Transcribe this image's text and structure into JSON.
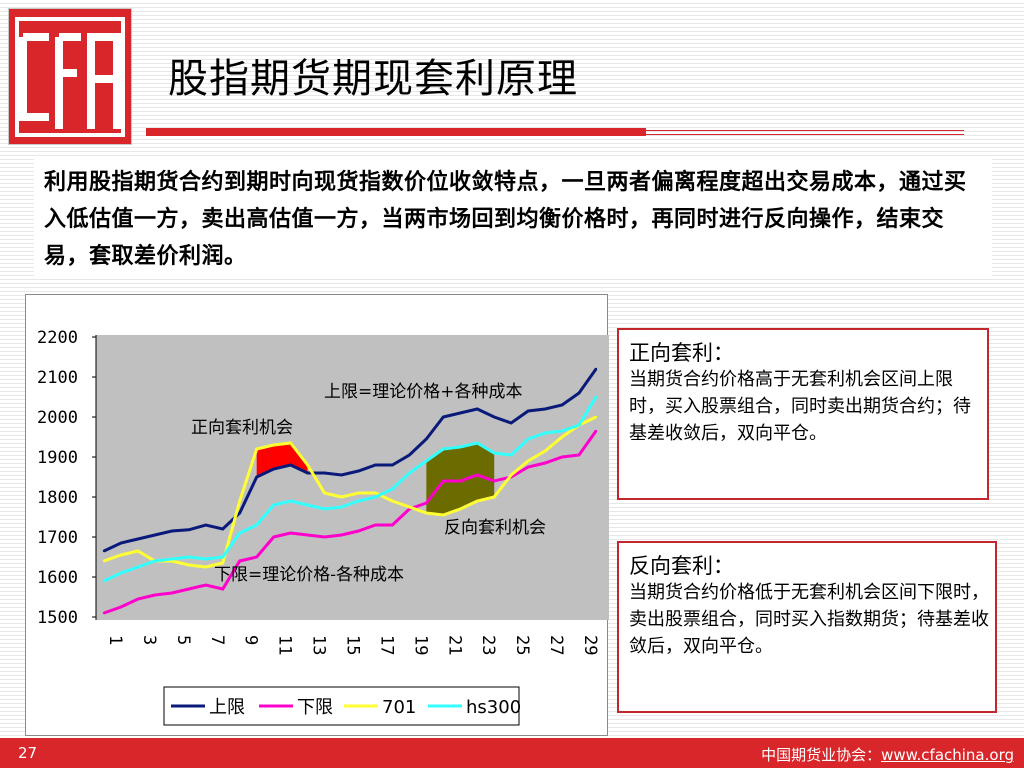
{
  "slide": {
    "title": "股指期货期现套利原理",
    "intro": "利用股指期货合约到期时向现货指数价位收敛特点，一旦两者偏离程度超出交易成本，通过买入低估值一方，卖出高估值一方，当两市场回到均衡价格时，再同时进行反向操作，结束交易，套取差价利润。",
    "page_number": "27",
    "footer_org": "中国期货业协会：",
    "footer_url": "www.cfachina.org"
  },
  "callouts": [
    {
      "title": "正向套利：",
      "body": "当期货合约价格高于无套利机会区间上限时，买入股票组合，同时卖出期货合约；待基差收敛后，双向平仓。"
    },
    {
      "title": "反向套利：",
      "body": "当期货合约价格低于无套利机会区间下限时，卖出股票组合，同时买入指数期货；待基差收敛后，双向平仓。"
    }
  ],
  "colors": {
    "brand_red": "#d8262a",
    "callout_border": "#c1272d",
    "plot_bg": "#c0c0c0"
  },
  "chart_data": {
    "type": "line",
    "x": [
      1,
      2,
      3,
      4,
      5,
      6,
      7,
      8,
      9,
      10,
      11,
      12,
      13,
      14,
      15,
      16,
      17,
      18,
      19,
      20,
      21,
      22,
      23,
      24,
      25,
      26,
      27,
      28,
      29,
      30
    ],
    "x_tick_labels": [
      "1",
      "3",
      "5",
      "7",
      "9",
      "11",
      "13",
      "15",
      "17",
      "19",
      "21",
      "23",
      "25",
      "27",
      "29"
    ],
    "ylim": [
      1500,
      2200
    ],
    "y_ticks": [
      1500,
      1600,
      1700,
      1800,
      1900,
      2000,
      2100,
      2200
    ],
    "series": [
      {
        "name": "上限",
        "color": "#0a1a7a",
        "values": [
          1665,
          1685,
          1695,
          1705,
          1715,
          1718,
          1730,
          1720,
          1760,
          1850,
          1870,
          1880,
          1860,
          1860,
          1855,
          1865,
          1880,
          1880,
          1905,
          1945,
          2000,
          2010,
          2020,
          2000,
          1985,
          2015,
          2020,
          2030,
          2060,
          2120
        ]
      },
      {
        "name": "下限",
        "color": "#ff00cc",
        "values": [
          1510,
          1525,
          1545,
          1555,
          1560,
          1570,
          1580,
          1570,
          1640,
          1650,
          1700,
          1710,
          1705,
          1700,
          1705,
          1715,
          1730,
          1730,
          1770,
          1785,
          1840,
          1840,
          1855,
          1840,
          1850,
          1875,
          1885,
          1900,
          1905,
          1965
        ]
      },
      {
        "name": "701",
        "color": "#ffff33",
        "values": [
          1640,
          1655,
          1665,
          1640,
          1640,
          1630,
          1625,
          1635,
          1790,
          1920,
          1930,
          1935,
          1880,
          1810,
          1800,
          1810,
          1810,
          1790,
          1775,
          1760,
          1755,
          1770,
          1790,
          1800,
          1855,
          1890,
          1915,
          1950,
          1980,
          2000
        ]
      },
      {
        "name": "hs300",
        "color": "#33ffff",
        "values": [
          1590,
          1610,
          1625,
          1640,
          1645,
          1650,
          1645,
          1650,
          1710,
          1730,
          1780,
          1790,
          1780,
          1770,
          1775,
          1790,
          1800,
          1820,
          1860,
          1890,
          1920,
          1925,
          1935,
          1910,
          1905,
          1945,
          1960,
          1965,
          1980,
          2050
        ]
      }
    ],
    "annotations": [
      {
        "text": "上限=理论价格+各种成本"
      },
      {
        "text": "正向套利机会"
      },
      {
        "text": "反向套利机会"
      },
      {
        "text": "下限=理论价格-各种成本"
      }
    ],
    "legend_position": "bottom"
  }
}
